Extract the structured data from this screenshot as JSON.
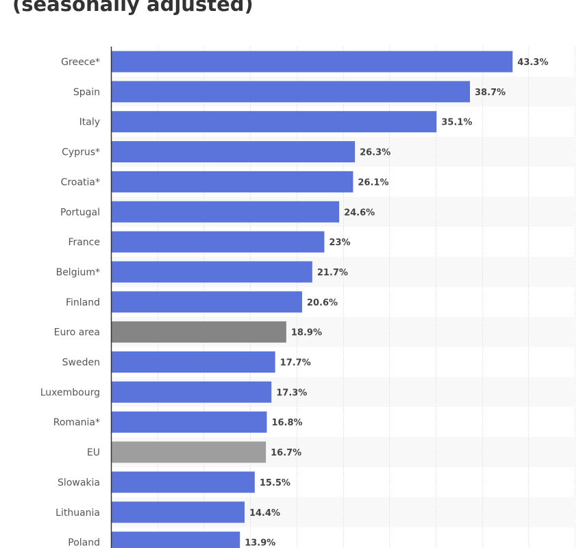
{
  "title": "(seasonally adjusted)",
  "chart_data": {
    "type": "bar",
    "orientation": "horizontal",
    "title": "(seasonally adjusted)",
    "xlabel": "",
    "ylabel": "",
    "xlim": [
      0,
      50
    ],
    "grid": true,
    "value_suffix": "%",
    "categories": [
      "Greece*",
      "Spain",
      "Italy",
      "Cyprus*",
      "Croatia*",
      "Portugal",
      "France",
      "Belgium*",
      "Finland",
      "Euro area",
      "Sweden",
      "Luxembourg",
      "Romania*",
      "EU",
      "Slowakia",
      "Lithuania",
      "Poland"
    ],
    "values": [
      43.3,
      38.7,
      35.1,
      26.3,
      26.1,
      24.6,
      23,
      21.7,
      20.6,
      18.9,
      17.7,
      17.3,
      16.8,
      16.7,
      15.5,
      14.4,
      13.9
    ],
    "value_labels": [
      "43.3%",
      "38.7%",
      "35.1%",
      "26.3%",
      "26.1%",
      "24.6%",
      "23%",
      "21.7%",
      "20.6%",
      "18.9%",
      "17.7%",
      "17.3%",
      "16.8%",
      "16.7%",
      "15.5%",
      "14.4%",
      "13.9%"
    ],
    "colors": {
      "default": "#5a74dc",
      "Euro area": "#858585",
      "EU": "#9e9e9e",
      "stripe": "#f8f8f8",
      "grid": "#d4d4d4",
      "axis": "#333333"
    }
  }
}
